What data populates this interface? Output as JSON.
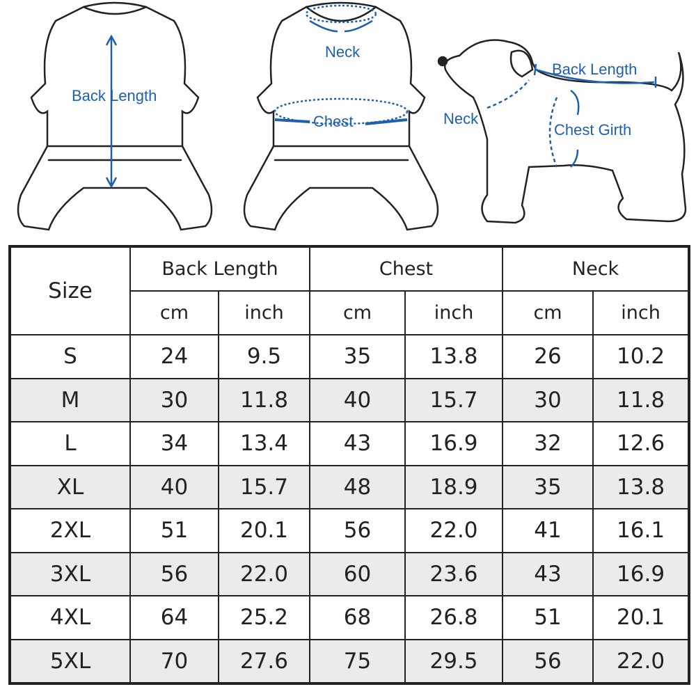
{
  "diagrams": {
    "garment_back": {
      "label": "Back Length"
    },
    "garment_front": {
      "neck_label": "Neck",
      "chest_label": "Chest"
    },
    "dog": {
      "back_label": "Back Length",
      "neck_label": "Neck",
      "chest_label": "Chest Girth"
    },
    "accent_color": "#1f5fb0"
  },
  "table": {
    "size_header": "Size",
    "groups": [
      "Back Length",
      "Chest",
      "Neck"
    ],
    "units": [
      "cm",
      "inch",
      "cm",
      "inch",
      "cm",
      "inch"
    ],
    "rows": [
      {
        "size": "S",
        "values": [
          "24",
          "9.5",
          "35",
          "13.8",
          "26",
          "10.2"
        ]
      },
      {
        "size": "M",
        "values": [
          "30",
          "11.8",
          "40",
          "15.7",
          "30",
          "11.8"
        ]
      },
      {
        "size": "L",
        "values": [
          "34",
          "13.4",
          "43",
          "16.9",
          "32",
          "12.6"
        ]
      },
      {
        "size": "XL",
        "values": [
          "40",
          "15.7",
          "48",
          "18.9",
          "35",
          "13.8"
        ]
      },
      {
        "size": "2XL",
        "values": [
          "51",
          "20.1",
          "56",
          "22.0",
          "41",
          "16.1"
        ]
      },
      {
        "size": "3XL",
        "values": [
          "56",
          "22.0",
          "60",
          "23.6",
          "43",
          "16.9"
        ]
      },
      {
        "size": "4XL",
        "values": [
          "64",
          "25.2",
          "68",
          "26.8",
          "51",
          "20.1"
        ]
      },
      {
        "size": "5XL",
        "values": [
          "70",
          "27.6",
          "75",
          "29.5",
          "56",
          "22.0"
        ]
      }
    ],
    "alt_row_color": "#ebebeb"
  }
}
